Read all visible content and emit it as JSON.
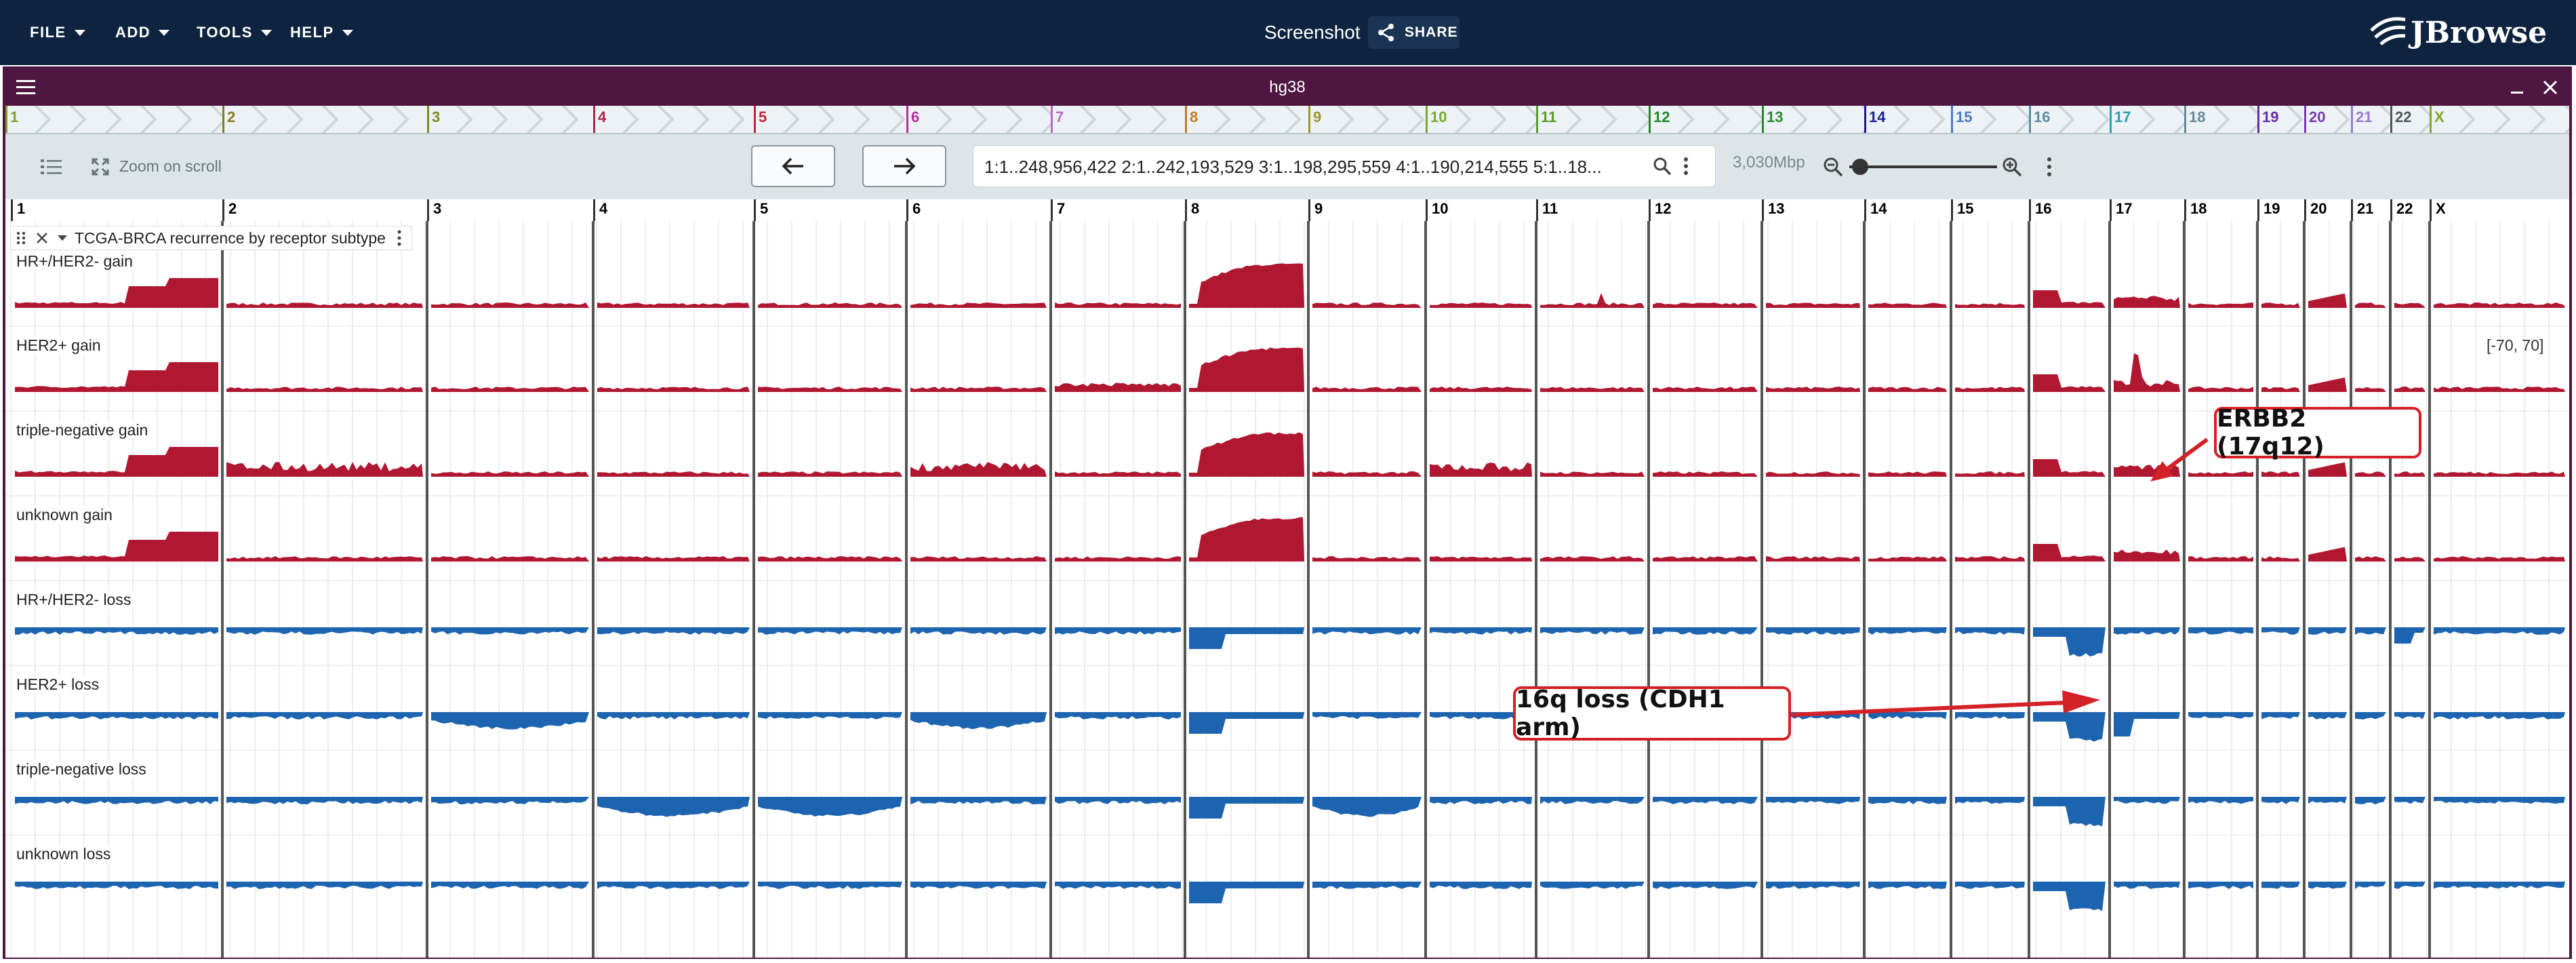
{
  "menu": {
    "file": "FILE",
    "add": "ADD",
    "tools": "TOOLS",
    "help": "HELP"
  },
  "header": {
    "title": "Screenshot",
    "share": "SHARE",
    "logo": "JBrowse"
  },
  "view": {
    "title": "hg38"
  },
  "overview": [
    "1",
    "2",
    "3",
    "4",
    "5",
    "6",
    "7",
    "8",
    "9",
    "10",
    "11",
    "12",
    "13",
    "14",
    "15",
    "16",
    "17",
    "18",
    "19",
    "20",
    "21",
    "22",
    "X"
  ],
  "toolbar": {
    "zoom_on_scroll": "Zoom on scroll",
    "locstring": "1:1..248,956,422 2:1..242,193,529 3:1..198,295,559 4:1..190,214,555 5:1..18...",
    "bp": "3,030Mbp"
  },
  "ruler": [
    "1",
    "2",
    "3",
    "4",
    "5",
    "6",
    "7",
    "8",
    "9",
    "10",
    "11",
    "12",
    "13",
    "14",
    "15",
    "16",
    "17",
    "18",
    "19",
    "20",
    "21",
    "22",
    "X"
  ],
  "track": {
    "name": "TCGA-BRCA recurrence by receptor subtype",
    "scale": "[-70, 70]"
  },
  "rows": [
    "HR+/HER2- gain",
    "HER2+ gain",
    "triple-negative gain",
    "unknown gain",
    "HR+/HER2- loss",
    "HER2+ loss",
    "triple-negative loss",
    "unknown loss"
  ],
  "callouts": {
    "erbb2": "ERBB2 (17q12)",
    "cdh1": "16q loss (CDH1 arm)"
  },
  "colors": {
    "gain": "#b01731",
    "loss": "#1d64b0",
    "appbar": "#0d233f",
    "viewbar": "#4e1640",
    "annotation": "#d42027"
  },
  "overview_colors": [
    "#84a02a",
    "#8b7a1e",
    "#7e8a1e",
    "#b0264b",
    "#c0243e",
    "#b72d9c",
    "#b86bc0",
    "#c57a1e",
    "#9f9628",
    "#7aa82b",
    "#5a9a2d",
    "#1f8a2a",
    "#2b8a2b",
    "#1c1c9e",
    "#4a7ac7",
    "#5b8da6",
    "#2aa0b0",
    "#6a8a9a",
    "#6a2aa6",
    "#7a3ab0",
    "#9a7ad0",
    "#555555",
    "#8aa22a"
  ],
  "icons": {
    "share": "share-icon",
    "tracks": "track-list-icon",
    "zoom_scroll": "zoom-on-scroll-icon",
    "back": "arrow-left-icon",
    "fwd": "arrow-right-icon",
    "search": "search-icon",
    "more": "more-vert-icon",
    "zoom_out": "zoom-out-icon",
    "zoom_in": "zoom-in-icon"
  }
}
